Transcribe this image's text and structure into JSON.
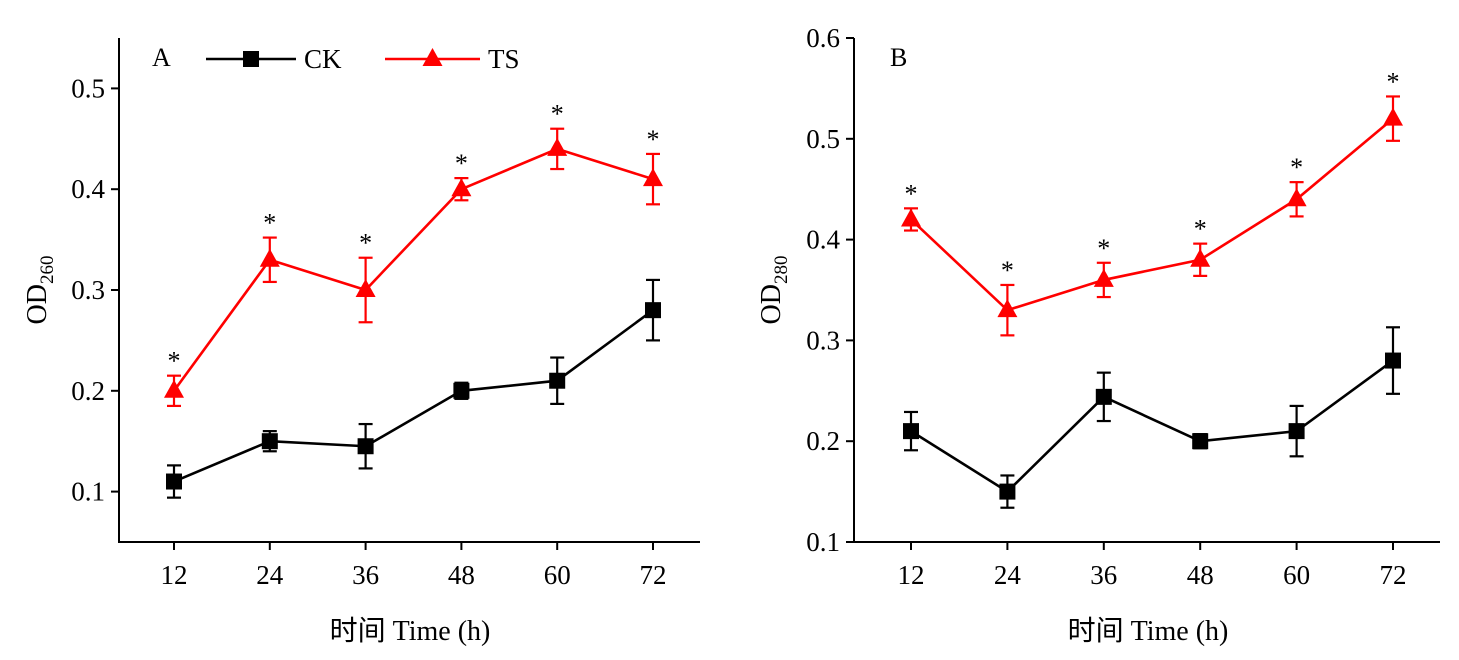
{
  "chart_data": [
    {
      "type": "line",
      "panel_label": "A",
      "xlabel": "时间 Time (h)",
      "ylabel": {
        "base": "OD",
        "sub": "260"
      },
      "x": [
        12,
        24,
        36,
        48,
        60,
        72
      ],
      "xticks": [
        "12",
        "24",
        "36",
        "48",
        "60",
        "72"
      ],
      "ylim": [
        0.05,
        0.55
      ],
      "yticks": [
        "0.1",
        "0.2",
        "0.3",
        "0.4",
        "0.5"
      ],
      "legend": "top-center",
      "grid": false,
      "series": [
        {
          "name": "CK",
          "marker": "square",
          "color": "#000000",
          "values": [
            0.11,
            0.15,
            0.145,
            0.2,
            0.21,
            0.28
          ],
          "errors": [
            0.016,
            0.01,
            0.022,
            0.008,
            0.023,
            0.03
          ]
        },
        {
          "name": "TS",
          "marker": "triangle",
          "color": "#ff0000",
          "values": [
            0.2,
            0.33,
            0.3,
            0.4,
            0.44,
            0.41
          ],
          "errors": [
            0.015,
            0.022,
            0.032,
            0.011,
            0.02,
            0.025
          ],
          "significance": [
            "*",
            "*",
            "*",
            "*",
            "*",
            "*"
          ]
        }
      ]
    },
    {
      "type": "line",
      "panel_label": "B",
      "xlabel": "时间 Time (h)",
      "ylabel": {
        "base": "OD",
        "sub": "280"
      },
      "x": [
        12,
        24,
        36,
        48,
        60,
        72
      ],
      "xticks": [
        "12",
        "24",
        "36",
        "48",
        "60",
        "72"
      ],
      "ylim": [
        0.1,
        0.6
      ],
      "yticks": [
        "0.1",
        "0.2",
        "0.3",
        "0.4",
        "0.5",
        "0.6"
      ],
      "grid": false,
      "series": [
        {
          "name": "CK",
          "marker": "square",
          "color": "#000000",
          "values": [
            0.21,
            0.15,
            0.244,
            0.2,
            0.21,
            0.28
          ],
          "errors": [
            0.019,
            0.016,
            0.024,
            0.007,
            0.025,
            0.033
          ]
        },
        {
          "name": "TS",
          "marker": "triangle",
          "color": "#ff0000",
          "values": [
            0.42,
            0.33,
            0.36,
            0.38,
            0.44,
            0.52
          ],
          "errors": [
            0.011,
            0.025,
            0.017,
            0.016,
            0.017,
            0.022
          ],
          "significance": [
            "*",
            "*",
            "*",
            "*",
            "*",
            "*"
          ]
        }
      ]
    }
  ]
}
